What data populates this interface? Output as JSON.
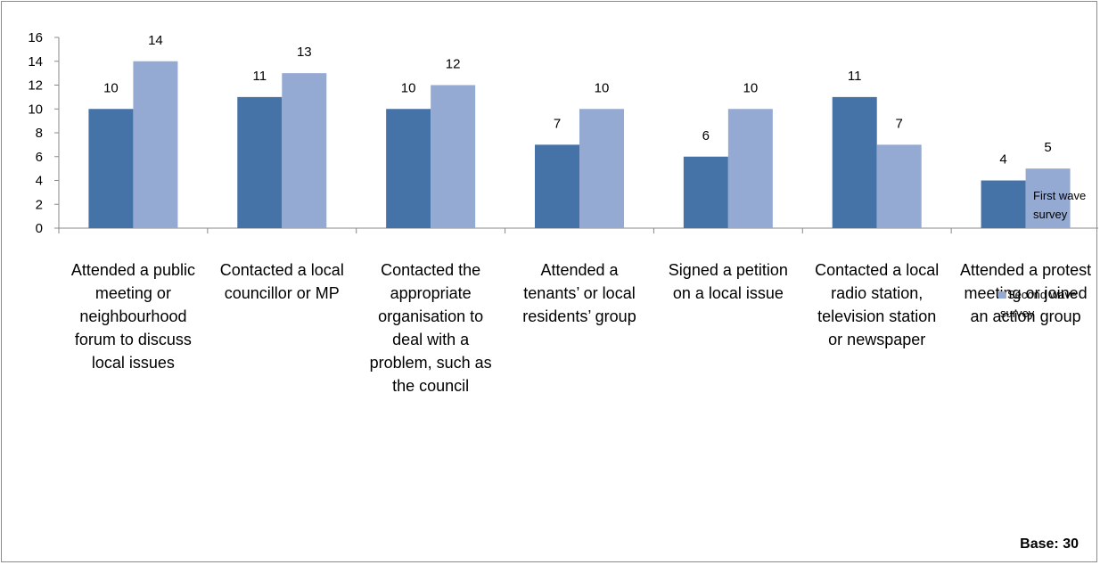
{
  "chart_data": {
    "type": "bar",
    "categories": [
      [
        "Attended a public",
        "meeting or",
        "neighbourhood",
        "forum to discuss",
        "local issues"
      ],
      [
        "Contacted a local",
        "councillor or MP"
      ],
      [
        "Contacted the",
        "appropriate",
        "organisation to",
        "deal with a",
        "problem, such as",
        "the council"
      ],
      [
        "Attended a",
        "tenants’ or local",
        "residents’ group"
      ],
      [
        "Signed a petition",
        "on a local issue"
      ],
      [
        "Contacted a local",
        "radio station,",
        "television station",
        "or newspaper"
      ],
      [
        "Attended a protest",
        "meeting or joined",
        "an action group"
      ]
    ],
    "series": [
      {
        "name": "First wave survey",
        "values": [
          10,
          11,
          10,
          7,
          6,
          11,
          4
        ],
        "color": "#4572A7"
      },
      {
        "name": "Second wave survey",
        "values": [
          14,
          13,
          12,
          10,
          10,
          7,
          5
        ],
        "color": "#95AAD3"
      }
    ],
    "ylim": [
      0,
      16
    ],
    "yticks": [
      0,
      2,
      4,
      6,
      8,
      10,
      12,
      14,
      16
    ],
    "grid": false,
    "legend": "right",
    "legend_labels": [
      [
        "First wave",
        "survey"
      ],
      [
        "Second wave",
        "survey"
      ]
    ],
    "note": "Base: 30"
  }
}
